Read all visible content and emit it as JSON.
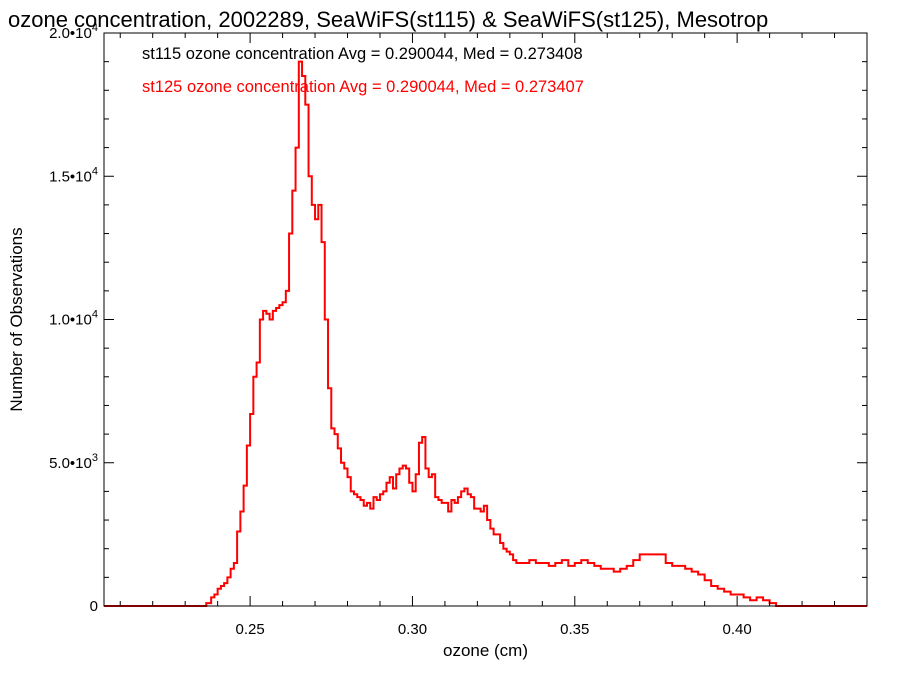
{
  "chart_data": {
    "type": "histogram-step",
    "title": "ozone concentration, 2002289, SeaWiFS(st115) & SeaWiFS(st125), Mesotrop",
    "xlabel": "ozone (cm)",
    "ylabel": "Number of Observations",
    "xlim": [
      0.205,
      0.44
    ],
    "ylim": [
      0,
      20000
    ],
    "xticks": [
      {
        "value": 0.25,
        "label": "0.25"
      },
      {
        "value": 0.3,
        "label": "0.30"
      },
      {
        "value": 0.35,
        "label": "0.35"
      },
      {
        "value": 0.4,
        "label": "0.40"
      }
    ],
    "yticks": [
      {
        "value": 0,
        "mantissa": "0",
        "exp": ""
      },
      {
        "value": 5000,
        "mantissa": "5.0•10",
        "exp": "3"
      },
      {
        "value": 10000,
        "mantissa": "1.0•10",
        "exp": "4"
      },
      {
        "value": 15000,
        "mantissa": "1.5•10",
        "exp": "4"
      },
      {
        "value": 20000,
        "mantissa": "2.0•10",
        "exp": "4"
      }
    ],
    "legend": [
      {
        "text": "st115 ozone concentration Avg = 0.290044, Med = 0.273408",
        "color": "#000000"
      },
      {
        "text": "st125 ozone concentration Avg = 0.290044, Med = 0.273407",
        "color": "#ff0000"
      }
    ],
    "series": [
      {
        "color": "#ff0000",
        "x": [
          0.205,
          0.2365,
          0.238,
          0.239,
          0.24,
          0.241,
          0.242,
          0.243,
          0.244,
          0.245,
          0.246,
          0.247,
          0.248,
          0.249,
          0.25,
          0.251,
          0.252,
          0.253,
          0.254,
          0.255,
          0.256,
          0.257,
          0.258,
          0.259,
          0.26,
          0.261,
          0.262,
          0.263,
          0.264,
          0.265,
          0.266,
          0.267,
          0.268,
          0.269,
          0.27,
          0.271,
          0.272,
          0.273,
          0.274,
          0.275,
          0.276,
          0.277,
          0.278,
          0.279,
          0.28,
          0.281,
          0.282,
          0.283,
          0.284,
          0.285,
          0.286,
          0.287,
          0.288,
          0.289,
          0.29,
          0.291,
          0.292,
          0.293,
          0.294,
          0.295,
          0.296,
          0.297,
          0.298,
          0.299,
          0.3,
          0.301,
          0.302,
          0.303,
          0.304,
          0.305,
          0.306,
          0.307,
          0.308,
          0.309,
          0.31,
          0.311,
          0.312,
          0.313,
          0.314,
          0.315,
          0.316,
          0.317,
          0.318,
          0.319,
          0.32,
          0.321,
          0.322,
          0.323,
          0.324,
          0.325,
          0.326,
          0.327,
          0.328,
          0.329,
          0.33,
          0.331,
          0.332,
          0.333,
          0.334,
          0.336,
          0.338,
          0.34,
          0.342,
          0.344,
          0.346,
          0.348,
          0.35,
          0.352,
          0.354,
          0.356,
          0.358,
          0.36,
          0.362,
          0.364,
          0.366,
          0.368,
          0.37,
          0.372,
          0.374,
          0.376,
          0.378,
          0.38,
          0.382,
          0.384,
          0.386,
          0.388,
          0.39,
          0.392,
          0.394,
          0.396,
          0.398,
          0.4,
          0.402,
          0.404,
          0.406,
          0.408,
          0.41,
          0.412,
          0.414,
          0.416,
          0.418,
          0.42,
          0.425,
          0.43,
          0.44
        ],
        "y": [
          0,
          100,
          300,
          400,
          600,
          700,
          800,
          1000,
          1300,
          1500,
          2600,
          3300,
          4200,
          5600,
          6700,
          8000,
          8500,
          10000,
          10300,
          10200,
          10000,
          10300,
          10400,
          10500,
          10600,
          11000,
          13000,
          14500,
          16000,
          19000,
          18500,
          17500,
          15000,
          14000,
          13500,
          14000,
          12700,
          10000,
          7600,
          6200,
          6000,
          5500,
          5000,
          4800,
          4500,
          4000,
          3900,
          3800,
          3700,
          3500,
          3600,
          3400,
          3800,
          3700,
          3900,
          4000,
          4300,
          4500,
          4100,
          4600,
          4800,
          4900,
          4800,
          4300,
          4000,
          4600,
          5700,
          5900,
          4800,
          4500,
          4600,
          3800,
          3700,
          3600,
          3600,
          3300,
          3700,
          3600,
          3800,
          4000,
          4100,
          3900,
          3800,
          3400,
          3400,
          3300,
          3500,
          3000,
          2700,
          2500,
          2500,
          2200,
          2000,
          1900,
          1800,
          1600,
          1500,
          1500,
          1500,
          1600,
          1500,
          1500,
          1400,
          1500,
          1600,
          1400,
          1500,
          1600,
          1500,
          1400,
          1300,
          1300,
          1200,
          1300,
          1400,
          1600,
          1800,
          1800,
          1800,
          1800,
          1500,
          1400,
          1400,
          1300,
          1200,
          1100,
          900,
          700,
          600,
          500,
          400,
          400,
          300,
          200,
          300,
          200,
          100,
          0,
          0,
          0,
          0,
          0,
          0,
          0
        ]
      }
    ]
  }
}
